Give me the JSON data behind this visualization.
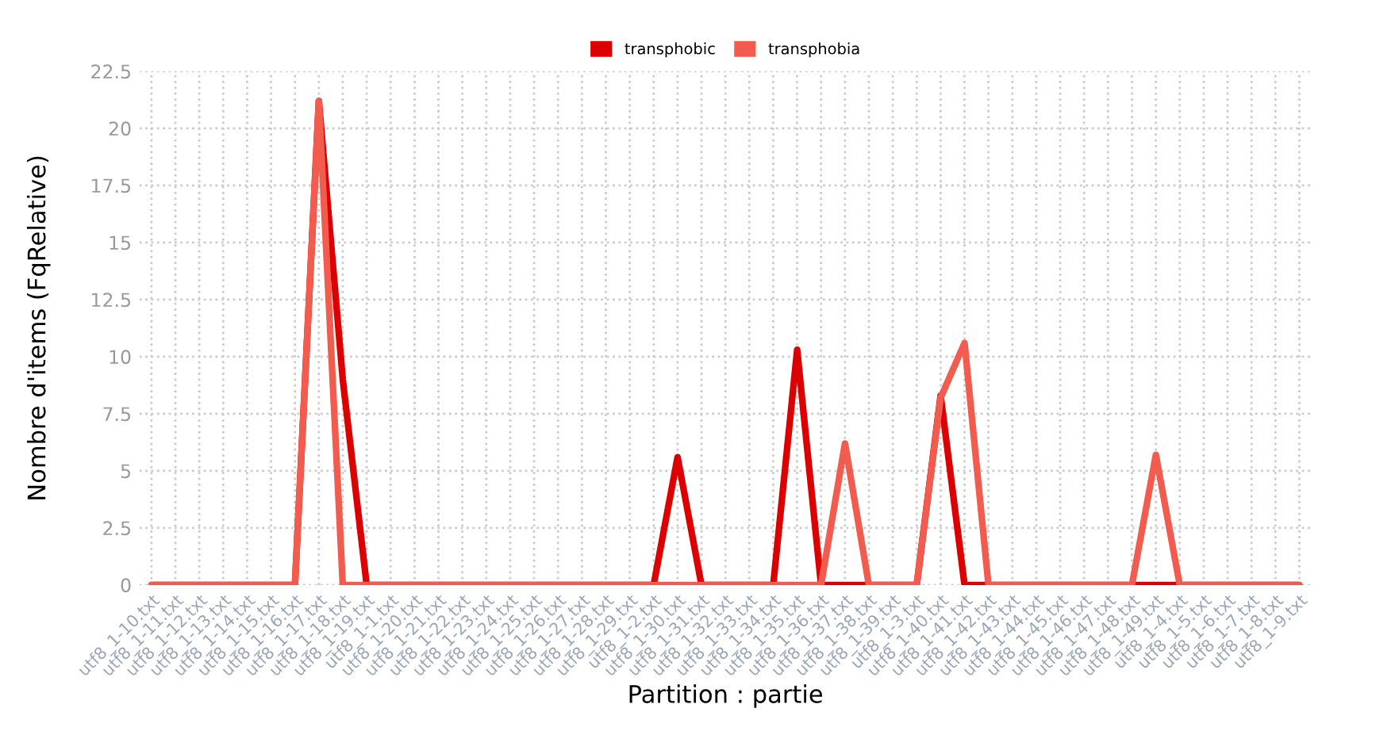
{
  "chart_data": {
    "type": "line",
    "categories": [
      "utf8_1-10.txt",
      "utf8_1-11.txt",
      "utf8_1-12.txt",
      "utf8_1-13.txt",
      "utf8_1-14.txt",
      "utf8_1-15.txt",
      "utf8_1-16.txt",
      "utf8_1-17.txt",
      "utf8_1-18.txt",
      "utf8_1-19.txt",
      "utf8_1-1.txt",
      "utf8_1-20.txt",
      "utf8_1-21.txt",
      "utf8_1-22.txt",
      "utf8_1-23.txt",
      "utf8_1-24.txt",
      "utf8_1-25.txt",
      "utf8_1-26.txt",
      "utf8_1-27.txt",
      "utf8_1-28.txt",
      "utf8_1-29.txt",
      "utf8_1-2.txt",
      "utf8_1-30.txt",
      "utf8_1-31.txt",
      "utf8_1-32.txt",
      "utf8_1-33.txt",
      "utf8_1-34.txt",
      "utf8_1-35.txt",
      "utf8_1-36.txt",
      "utf8_1-37.txt",
      "utf8_1-38.txt",
      "utf8_1-39.txt",
      "utf8_1-3.txt",
      "utf8_1-40.txt",
      "utf8_1-41.txt",
      "utf8_1-42.txt",
      "utf8_1-43.txt",
      "utf8_1-44.txt",
      "utf8_1-45.txt",
      "utf8_1-46.txt",
      "utf8_1-47.txt",
      "utf8_1-48.txt",
      "utf8_1-49.txt",
      "utf8_1-4.txt",
      "utf8_1-5.txt",
      "utf8_1-6.txt",
      "utf8_1-7.txt",
      "utf8_1-8.txt",
      "utf8_1-9.txt"
    ],
    "series": [
      {
        "name": "transphobic",
        "color": "#dd0000",
        "values": [
          0,
          0,
          0,
          0,
          0,
          0,
          0,
          21.2,
          9,
          0,
          0,
          0,
          0,
          0,
          0,
          0,
          0,
          0,
          0,
          0,
          0,
          0,
          5.6,
          0,
          0,
          0,
          0,
          10.3,
          0,
          0,
          0,
          0,
          0,
          8.3,
          0,
          0,
          0,
          0,
          0,
          0,
          0,
          0,
          0,
          0,
          0,
          0,
          0,
          0,
          0
        ]
      },
      {
        "name": "transphobia",
        "color": "#f25c4e",
        "values": [
          0,
          0,
          0,
          0,
          0,
          0,
          0,
          21.2,
          0,
          0,
          0,
          0,
          0,
          0,
          0,
          0,
          0,
          0,
          0,
          0,
          0,
          0,
          0,
          0,
          0,
          0,
          0,
          0,
          0,
          6.2,
          0,
          0,
          0,
          8.2,
          10.6,
          0,
          0,
          0,
          0,
          0,
          0,
          0,
          5.7,
          0,
          0,
          0,
          0,
          0,
          0
        ]
      }
    ],
    "xlabel": "Partition : partie",
    "ylabel": "Nombre d'items (FqRelative)",
    "ylim": [
      0,
      22.5
    ],
    "yticks": [
      0,
      2.5,
      5,
      7.5,
      10,
      12.5,
      15,
      17.5,
      20,
      22.5
    ],
    "grid": true,
    "legend": "top",
    "marker": "none",
    "line_style": "solid"
  }
}
